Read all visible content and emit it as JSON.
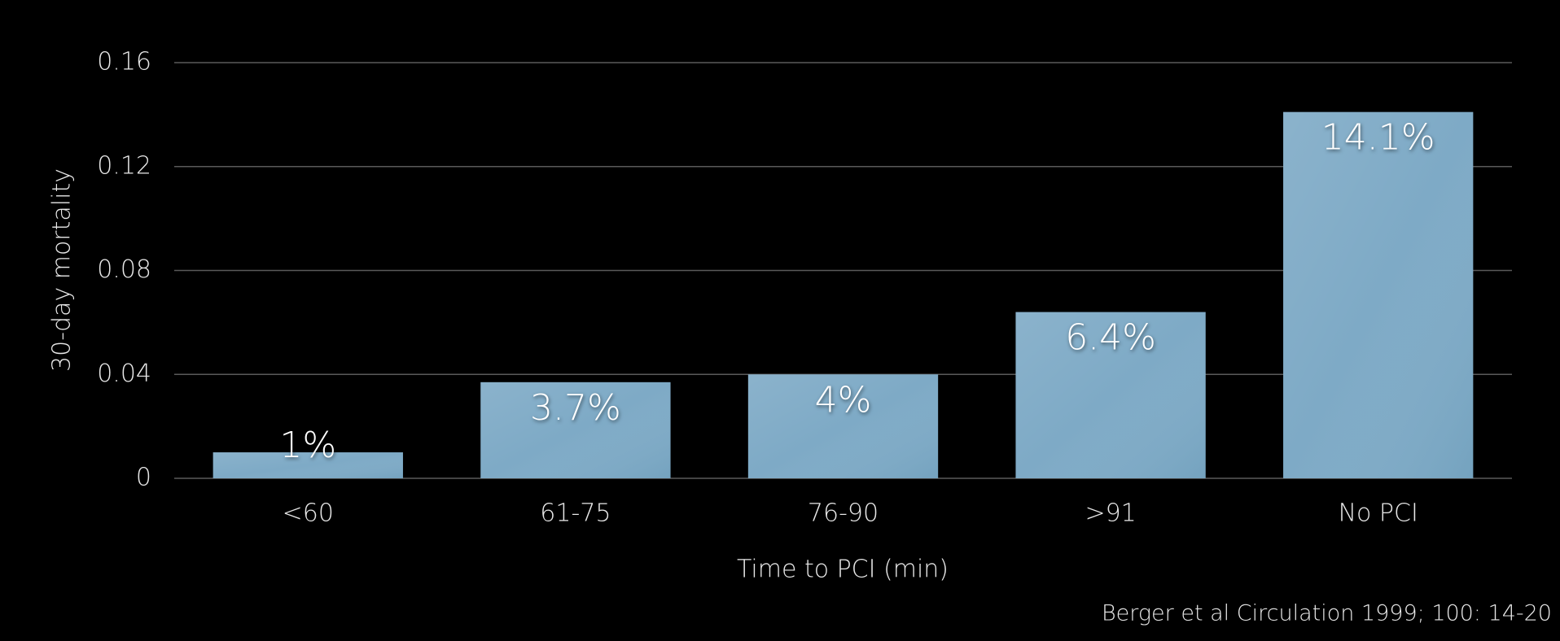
{
  "chart_data": {
    "type": "bar",
    "x_label": "Time to PCI (min)",
    "y_label": "30-day mortality",
    "source": "Berger et al Circulation 1999; 100: 14-20",
    "categories": [
      "<60",
      "61-75",
      "76-90",
      ">91",
      "No PCI"
    ],
    "values": [
      0.01,
      0.037,
      0.04,
      0.064,
      0.141
    ],
    "value_labels": [
      "1%",
      "3.7%",
      "4%",
      "6.4%",
      "14.1%"
    ],
    "color": "#7eaac6",
    "ylim": [
      0,
      0.16
    ],
    "yticks": [
      0,
      0.04,
      0.08,
      0.12,
      0.16
    ],
    "grid": true
  }
}
